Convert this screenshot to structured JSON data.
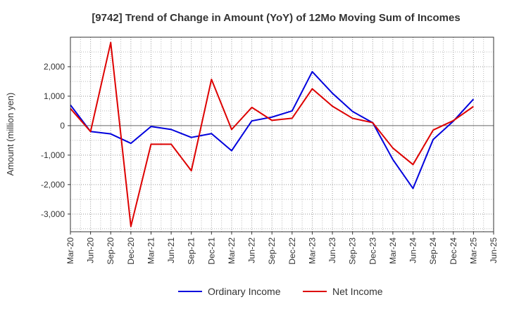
{
  "chart_data": {
    "type": "line",
    "title": "[9742]  Trend of Change in Amount (YoY) of 12Mo Moving Sum of Incomes",
    "xlabel": "",
    "ylabel": "Amount (million yen)",
    "categories": [
      "Mar-20",
      "Jun-20",
      "Sep-20",
      "Dec-20",
      "Mar-21",
      "Jun-21",
      "Sep-21",
      "Dec-21",
      "Mar-22",
      "Jun-22",
      "Sep-22",
      "Dec-22",
      "Mar-23",
      "Jun-23",
      "Sep-23",
      "Dec-23",
      "Mar-24",
      "Jun-24",
      "Sep-24",
      "Dec-24",
      "Mar-25",
      "Jun-25"
    ],
    "ylim": [
      -3600,
      3000
    ],
    "yticks": [
      2000,
      1000,
      0,
      -1000,
      -2000,
      -3000
    ],
    "ytick_labels": [
      "2,000",
      "1,000",
      "0",
      "-1,000",
      "-2,000",
      "-3,000"
    ],
    "grid": true,
    "legend_position": "bottom",
    "series": [
      {
        "name": "Ordinary Income",
        "color": "#0000dd",
        "values": [
          700,
          -200,
          -280,
          -600,
          -30,
          -130,
          -400,
          -270,
          -850,
          160,
          290,
          500,
          1830,
          1100,
          480,
          100,
          -1150,
          -2130,
          -470,
          150,
          900,
          null
        ]
      },
      {
        "name": "Net Income",
        "color": "#dd0000",
        "values": [
          580,
          -200,
          2820,
          -3420,
          -630,
          -630,
          -1530,
          1570,
          -130,
          620,
          180,
          250,
          1250,
          660,
          250,
          100,
          -760,
          -1320,
          -150,
          170,
          650,
          null
        ]
      }
    ]
  }
}
